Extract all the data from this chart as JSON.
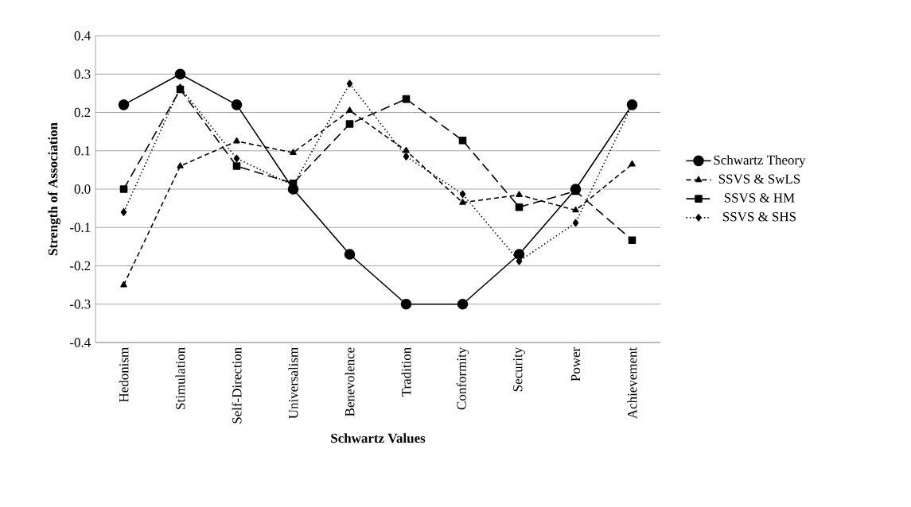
{
  "chart_data": {
    "type": "line",
    "xlabel": "Schwartz Values",
    "ylabel": "Strength of Association",
    "categories": [
      "Hedonism",
      "Stimulation",
      "Self-Direction",
      "Universalism",
      "Benevolence",
      "Tradition",
      "Conformity",
      "Security",
      "Power",
      "Achievement"
    ],
    "series": [
      {
        "name": "Schwartz Theory",
        "color": "#000000",
        "marker": "circle",
        "line_style": "solid",
        "values": [
          0.22,
          0.3,
          0.22,
          0.0,
          -0.17,
          -0.3,
          -0.3,
          -0.17,
          0.0,
          0.22
        ]
      },
      {
        "name": "SSVS & SwLS",
        "color": "#000000",
        "marker": "triangle",
        "line_style": "dashed",
        "values": [
          -0.25,
          0.06,
          0.125,
          0.095,
          0.205,
          0.1,
          -0.035,
          -0.015,
          -0.055,
          0.065
        ]
      },
      {
        "name": "SSVS & HM",
        "color": "#000000",
        "marker": "square",
        "line_style": "longdashed",
        "values": [
          0.0,
          0.26,
          0.06,
          0.015,
          0.17,
          0.235,
          0.127,
          -0.047,
          -0.005,
          -0.133
        ]
      },
      {
        "name": "SSVS & SHS",
        "color": "#000000",
        "marker": "diamond",
        "line_style": "dotted",
        "values": [
          -0.06,
          0.265,
          0.08,
          0.01,
          0.275,
          0.085,
          -0.013,
          -0.188,
          -0.088,
          0.22
        ]
      }
    ],
    "ylim": [
      -0.4,
      0.4
    ],
    "yticks": [
      {
        "value": -0.4,
        "label": "-0.4"
      },
      {
        "value": -0.3,
        "label": "-0.3"
      },
      {
        "value": -0.2,
        "label": "-0.2"
      },
      {
        "value": -0.1,
        "label": "-0.1"
      },
      {
        "value": 0,
        "label": "0.0"
      },
      {
        "value": 0.1,
        "label": "0.1"
      },
      {
        "value": 0.2,
        "label": "0.2"
      },
      {
        "value": 0.3,
        "label": "0.3"
      },
      {
        "value": 0.4,
        "label": "0.4"
      }
    ],
    "grid": "y",
    "legend": "right"
  }
}
